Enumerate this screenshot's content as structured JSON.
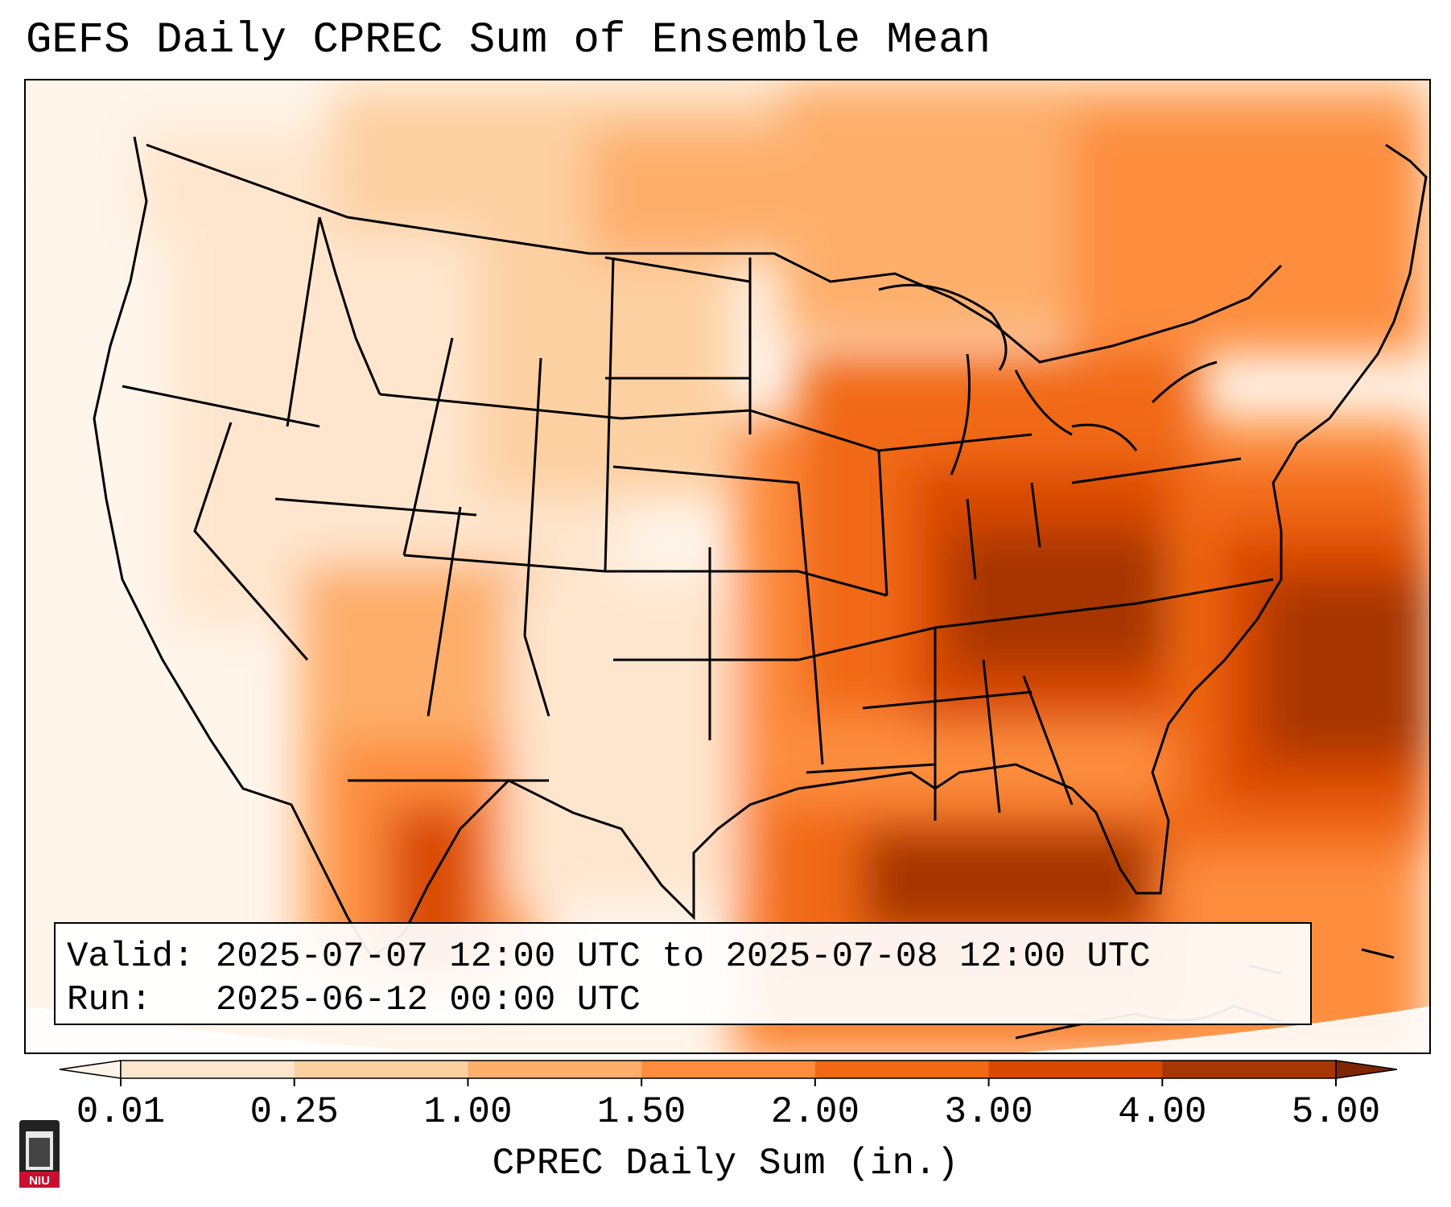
{
  "title": "GEFS Daily CPREC Sum of Ensemble Mean",
  "info": {
    "valid_label": "Valid:",
    "valid_value": "2025-07-07 12:00 UTC to 2025-07-08 12:00 UTC",
    "run_label": "Run:",
    "run_value": "2025-06-12 00:00 UTC"
  },
  "colorbar": {
    "label": "CPREC Daily Sum (in.)",
    "ticks": [
      "0.01",
      "0.25",
      "1.00",
      "1.50",
      "2.00",
      "3.00",
      "4.00",
      "5.00"
    ],
    "colors": [
      "#fff5eb",
      "#fee6ce",
      "#fdd0a2",
      "#fdae6b",
      "#fd8d3c",
      "#f16913",
      "#d94801",
      "#a63603",
      "#7f2704"
    ]
  },
  "logo": {
    "text": "NIU",
    "color": "#c8102e"
  }
}
